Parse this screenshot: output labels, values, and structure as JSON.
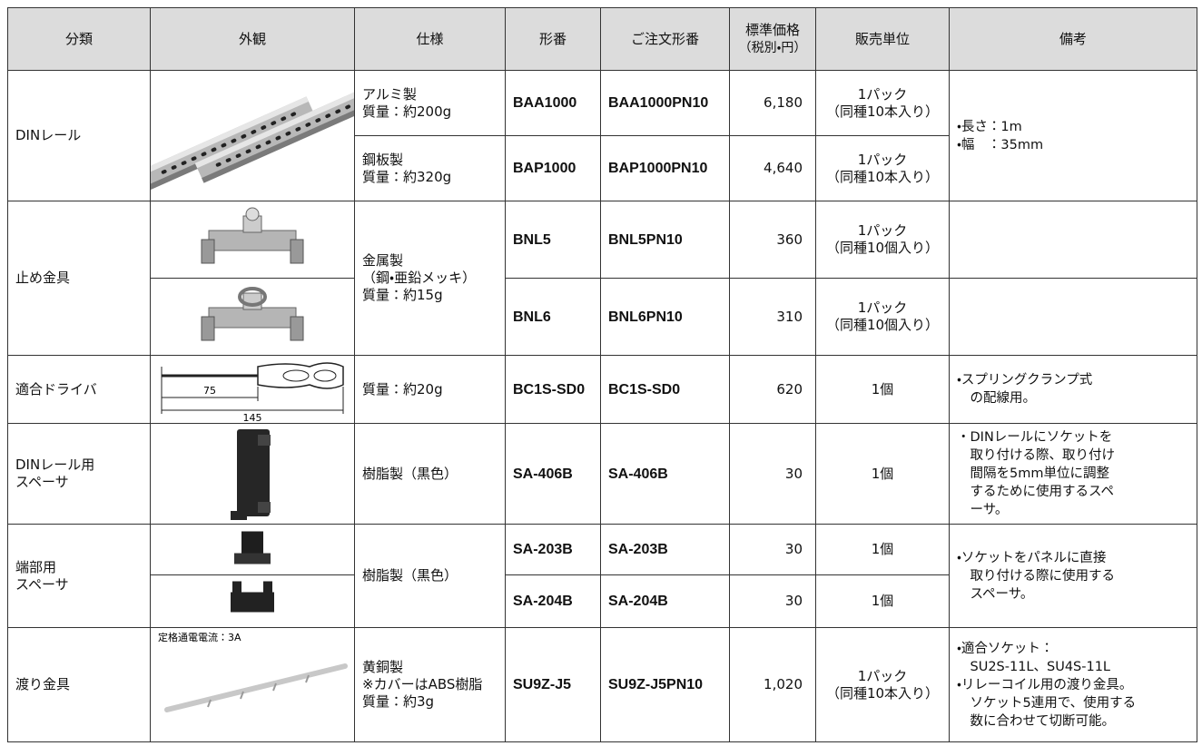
{
  "table": {
    "header": {
      "category": "分類",
      "appearance": "外観",
      "spec": "仕様",
      "model": "形番",
      "order_model": "ご注文形番",
      "price": [
        "標準価格",
        "（税別・円）"
      ],
      "unit": "販売単位",
      "remarks": "備考"
    },
    "groups": [
      {
        "category": [
          "DINレール"
        ],
        "remarks": [
          "・長さ：1m",
          "・幅　：35mm"
        ],
        "items": [
          {
            "spec": [
              "アルミ製",
              "質量：約200g"
            ],
            "model": "BAA1000",
            "order_model": "BAA1000PN10",
            "price": "6,180",
            "unit": [
              "1パック",
              "（同種10本入り）"
            ]
          },
          {
            "spec": [
              "鋼板製",
              "質量：約320g"
            ],
            "model": "BAP1000",
            "order_model": "BAP1000PN10",
            "price": "4,640",
            "unit": [
              "1パック",
              "（同種10本入り）"
            ]
          }
        ]
      },
      {
        "category": [
          "止め金具"
        ],
        "spec": [
          "金属製",
          "（鋼・亜鉛メッキ）",
          "質量：約15g"
        ],
        "items": [
          {
            "model": "BNL5",
            "order_model": "BNL5PN10",
            "price": "360",
            "unit": [
              "1パック",
              "（同種10個入り）"
            ]
          },
          {
            "model": "BNL6",
            "order_model": "BNL6PN10",
            "price": "310",
            "unit": [
              "1パック",
              "（同種10個入り）"
            ]
          }
        ]
      },
      {
        "category": [
          "適合ドライバ"
        ],
        "spec": [
          "質量：約20g"
        ],
        "remarks": [
          "・スプリングクランプ式",
          "の配線用。"
        ],
        "image_labels": [
          "75",
          "145"
        ],
        "items": [
          {
            "model": "BC1S-SD0",
            "order_model": "BC1S-SD0",
            "price": "620",
            "unit": [
              "1個"
            ]
          }
        ]
      },
      {
        "category": [
          "DINレール用",
          "スペーサ"
        ],
        "spec": [
          "樹脂製（黒色）"
        ],
        "remarks": [
          "・DINレールにソケットを",
          "取り付ける際、取り付け",
          "間隔を5mm単位に調整",
          "するために使用するスペ",
          "ーサ。"
        ],
        "items": [
          {
            "model": "SA-406B",
            "order_model": "SA-406B",
            "price": "30",
            "unit": [
              "1個"
            ]
          }
        ]
      },
      {
        "category": [
          "端部用",
          "スペーサ"
        ],
        "spec": [
          "樹脂製（黒色）"
        ],
        "remarks": [
          "・ソケットをパネルに直接",
          "取り付ける際に使用する",
          "スペーサ。"
        ],
        "items": [
          {
            "model": "SA-203B",
            "order_model": "SA-203B",
            "price": "30",
            "unit": [
              "1個"
            ]
          },
          {
            "model": "SA-204B",
            "order_model": "SA-204B",
            "price": "30",
            "unit": [
              "1個"
            ]
          }
        ]
      },
      {
        "category": [
          "渡り金具"
        ],
        "spec": [
          "黄銅製",
          "※カバーはABS樹脂",
          "質量：約3g"
        ],
        "remarks": [
          "・適合ソケット：",
          "SU2S-11L、SU4S-11L",
          "・リレーコイル用の渡り金具。",
          "ソケット5連用で、使用する",
          "数に合わせて切断可能。"
        ],
        "image_labels": [
          "定格通電電流：3A"
        ],
        "items": [
          {
            "model": "SU9Z-J5",
            "order_model": "SU9Z-J5PN10",
            "price": "1,020",
            "unit": [
              "1パック",
              "（同種10本入り）"
            ]
          }
        ]
      }
    ]
  }
}
